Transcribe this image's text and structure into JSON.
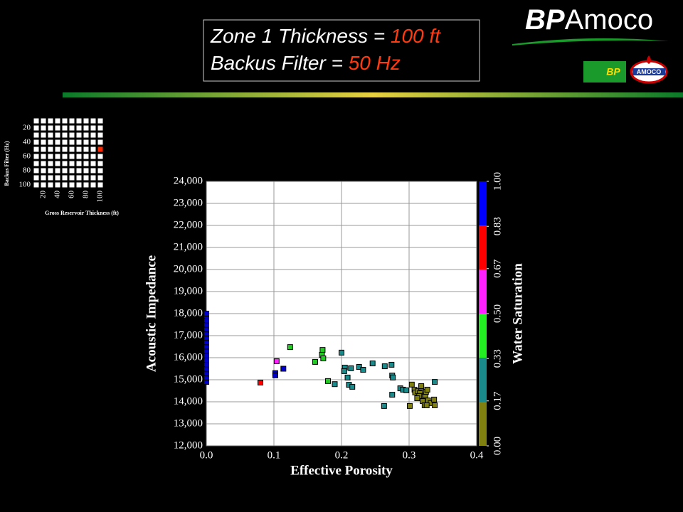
{
  "header": {
    "title_lines": [
      {
        "text": "Zone 1 Thickness = ",
        "value": "100 ft"
      },
      {
        "text": "Backus Filter = ",
        "value": "50 Hz"
      }
    ],
    "logo": {
      "bp": "BP",
      "amoco": "Amoco",
      "bp_badge": "BP",
      "amoco_badge": "AMOCO"
    }
  },
  "chart_data": [
    {
      "type": "grid",
      "xlabel": "Gross Reservoir Thickness (ft)",
      "ylabel": "Backus Filter (Hz)",
      "xlim": [
        10,
        100
      ],
      "ylim": [
        10,
        100
      ],
      "step": 10,
      "xticks": [
        20,
        40,
        60,
        80,
        100
      ],
      "yticks": [
        20,
        40,
        60,
        80,
        100
      ],
      "color": "#ffffff",
      "selected": {
        "x": 100,
        "y": 50,
        "color": "#ff2a00"
      }
    },
    {
      "type": "scatter",
      "xlabel": "Effective Porosity",
      "ylabel": "Acoustic Impedance",
      "xlim": [
        0,
        0.4
      ],
      "ylim": [
        12000,
        24000
      ],
      "xticks": [
        {
          "value": 0,
          "label": "0.0"
        },
        0.1,
        0.2,
        0.3,
        0.4
      ],
      "yticks": [
        {
          "value": 12000,
          "label": "12,000"
        },
        {
          "value": 13000,
          "label": "13,000"
        },
        {
          "value": 14000,
          "label": "14,000"
        },
        {
          "value": 15000,
          "label": "15,000"
        },
        {
          "value": 16000,
          "label": "16,000"
        },
        {
          "value": 17000,
          "label": "17,000"
        },
        {
          "value": 18000,
          "label": "18,000"
        },
        {
          "value": 19000,
          "label": "19,000"
        },
        {
          "value": 20000,
          "label": "20,000"
        },
        {
          "value": 21000,
          "label": "21,000"
        },
        {
          "value": 22000,
          "label": "22,000"
        },
        {
          "value": 23000,
          "label": "23,000"
        },
        {
          "value": 24000,
          "label": "24,000"
        }
      ],
      "grid": true,
      "colorbar": {
        "title": "Water Saturation",
        "lim": [
          0,
          1
        ],
        "ticks": [
          {
            "value": 0,
            "label": "0.00"
          },
          0.17,
          0.33,
          {
            "value": 0.5,
            "label": "0.50"
          },
          0.67,
          0.83,
          {
            "value": 1,
            "label": "1.00"
          }
        ],
        "colors": [
          "#808010",
          "#1a8a8a",
          "#22ee22",
          "#ff22ff",
          "#ff0000",
          "#0000ff"
        ]
      },
      "series": [
        {
          "color": "#0000cc",
          "x": [
            0,
            0,
            0,
            0,
            0,
            0,
            0,
            0,
            0,
            0,
            0,
            0,
            0,
            0,
            0,
            0,
            0,
            0.102,
            0.102,
            0.114
          ],
          "values": [
            14900,
            15100,
            15300,
            15500,
            15700,
            15900,
            16100,
            16300,
            16500,
            16700,
            16900,
            17100,
            17300,
            17500,
            17700,
            17900,
            18000,
            15300,
            15200,
            15500
          ]
        },
        {
          "color": "#ff0000",
          "x": [
            0.08
          ],
          "values": [
            14870
          ]
        },
        {
          "color": "#ff22ff",
          "x": [
            0.104
          ],
          "values": [
            15840
          ]
        },
        {
          "color": "#22cc22",
          "x": [
            0.124,
            0.161,
            0.172,
            0.171,
            0.173,
            0.18
          ],
          "values": [
            16480,
            15810,
            16350,
            16130,
            15970,
            14940
          ]
        },
        {
          "color": "#1a8a8a",
          "x": [
            0.19,
            0.2,
            0.205,
            0.204,
            0.209,
            0.211,
            0.216,
            0.214,
            0.226,
            0.232,
            0.246,
            0.264,
            0.274,
            0.275,
            0.276,
            0.275,
            0.263,
            0.287,
            0.291,
            0.296,
            0.338
          ],
          "values": [
            14800,
            16230,
            15550,
            15390,
            15100,
            14770,
            14680,
            15520,
            15580,
            15450,
            15740,
            15610,
            15680,
            15190,
            15100,
            14320,
            13810,
            14610,
            14550,
            14520,
            14900
          ]
        },
        {
          "color": "#808010",
          "x": [
            0.301,
            0.304,
            0.308,
            0.309,
            0.313,
            0.316,
            0.318,
            0.321,
            0.324,
            0.325,
            0.327,
            0.328,
            0.332,
            0.315,
            0.32,
            0.323,
            0.326,
            0.337,
            0.338,
            0.318,
            0.312
          ],
          "values": [
            13810,
            14780,
            14550,
            14420,
            14480,
            14390,
            14650,
            14230,
            14290,
            14450,
            14550,
            14060,
            13940,
            14260,
            14030,
            13840,
            13840,
            14100,
            13840,
            14710,
            14160
          ]
        }
      ]
    }
  ]
}
